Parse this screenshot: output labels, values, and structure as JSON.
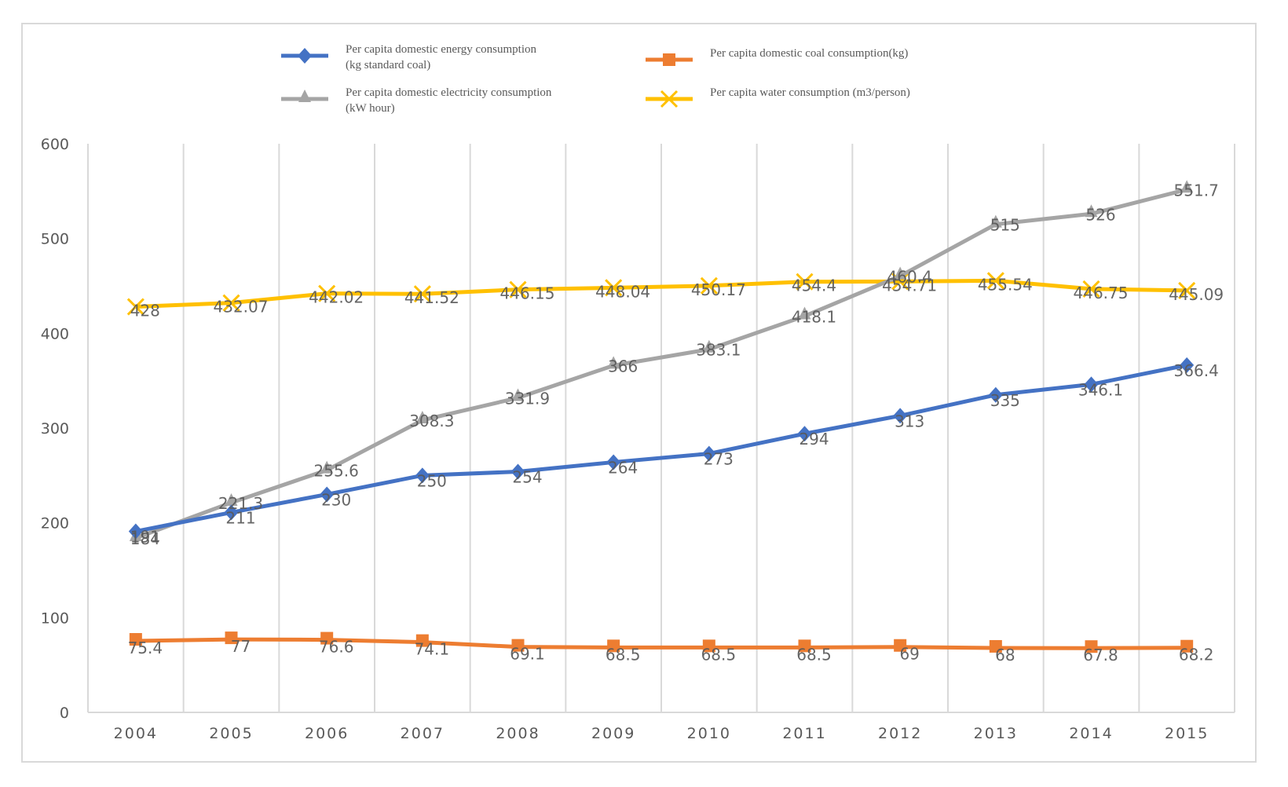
{
  "chart_data": {
    "type": "line",
    "title": "",
    "xlabel": "",
    "ylabel": "",
    "categories": [
      "2004",
      "2005",
      "2006",
      "2007",
      "2008",
      "2009",
      "2010",
      "2011",
      "2012",
      "2013",
      "2014",
      "2015"
    ],
    "ylim": [
      0,
      600
    ],
    "yticks": [
      0,
      100,
      200,
      300,
      400,
      500,
      600
    ],
    "ytick_labels": [
      "0",
      "100",
      "200",
      "300",
      "400",
      "500",
      "600"
    ],
    "grid": "vertical",
    "legend_position": "top",
    "series": [
      {
        "name": "Per capita domestic energy consumption (kg standard coal)",
        "legend_lines": [
          "Per capita domestic energy consumption",
          "(kg standard coal)"
        ],
        "color": "#4472c4",
        "marker": "diamond",
        "values": [
          191,
          211,
          230,
          250,
          254,
          264,
          273,
          294,
          313,
          335,
          346.1,
          366.4
        ],
        "labels": [
          "191",
          "211",
          "230",
          "250",
          "254",
          "264",
          "273",
          "294",
          "313",
          "335",
          "346.1",
          "366.4"
        ]
      },
      {
        "name": "Per capita domestic coal consumption(kg)",
        "legend_lines": [
          "Per capita domestic coal consumption(kg)"
        ],
        "color": "#ed7d31",
        "marker": "square",
        "values": [
          75.4,
          77,
          76.6,
          74.1,
          69.1,
          68.5,
          68.5,
          68.5,
          69,
          68,
          67.8,
          68.2
        ],
        "labels": [
          "75.4",
          "77",
          "76.6",
          "74.1",
          "69.1",
          "68.5",
          "68.5",
          "68.5",
          "69",
          "68",
          "67.8",
          "68.2"
        ]
      },
      {
        "name": "Per capita domestic electricity consumption (kW hour)",
        "legend_lines": [
          "Per capita domestic electricity consumption",
          "(kW hour)"
        ],
        "color": "#a5a5a5",
        "marker": "triangle",
        "values": [
          184,
          221.3,
          255.6,
          308.3,
          331.9,
          366,
          383.1,
          418.1,
          460.4,
          515,
          526,
          551.7
        ],
        "labels": [
          "184",
          "221.3",
          "255.6",
          "308.3",
          "331.9",
          "366",
          "383.1",
          "418.1",
          "460.4",
          "515",
          "526",
          "551.7"
        ]
      },
      {
        "name": "Per capita water consumption (m3/person)",
        "legend_lines": [
          "Per capita water consumption (m3/person)"
        ],
        "color": "#ffc000",
        "marker": "x",
        "values": [
          428,
          432.07,
          442.02,
          441.52,
          446.15,
          448.04,
          450.17,
          454.4,
          454.71,
          455.54,
          446.75,
          445.09
        ],
        "labels": [
          "428",
          "432.07",
          "442.02",
          "441.52",
          "446.15",
          "448.04",
          "450.17",
          "454.4",
          "454.71",
          "455.54",
          "446.75",
          "445.09"
        ]
      }
    ]
  }
}
